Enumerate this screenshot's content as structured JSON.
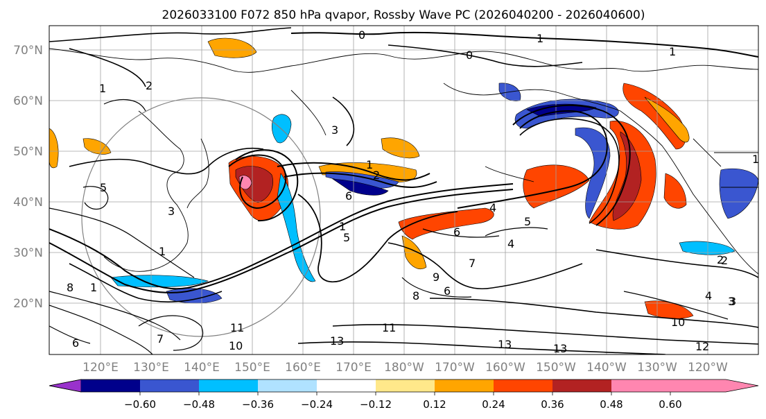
{
  "title": "2026033100 F072 850 hPa qvapor, Rossby Wave PC (2026040200 - 2026040600)",
  "map": {
    "lat_ticks": [
      "70°N",
      "60°N",
      "50°N",
      "40°N",
      "30°N",
      "20°N"
    ],
    "lon_ticks": [
      "120°E",
      "130°E",
      "140°E",
      "150°E",
      "160°E",
      "170°E",
      "180°W",
      "170°W",
      "160°W",
      "150°W",
      "140°W",
      "130°W",
      "120°W"
    ],
    "contour_labels": [
      "0",
      "1",
      "0",
      "1",
      "2",
      "1",
      "3",
      "1",
      "2",
      "4",
      "5",
      "6",
      "1",
      "5",
      "6",
      "4",
      "5",
      "3",
      "1",
      "2",
      "3",
      "6",
      "8",
      "9",
      "7",
      "10",
      "11",
      "13",
      "11",
      "10",
      "13",
      "13",
      "12",
      "10",
      "4",
      "3",
      "2",
      "1",
      "6",
      "8",
      "7"
    ]
  },
  "colorbar": {
    "colors": [
      "#9932cc",
      "#00008b",
      "#3a56d0",
      "#00bfff",
      "#b0e2ff",
      "#ffffff",
      "#ffe88a",
      "#ffa500",
      "#ff4500",
      "#b22222",
      "#ff86b0"
    ],
    "labels": [
      "−0.60",
      "−0.48",
      "−0.36",
      "−0.24",
      "−0.12",
      "0.12",
      "0.24",
      "0.36",
      "0.48",
      "0.60"
    ]
  }
}
